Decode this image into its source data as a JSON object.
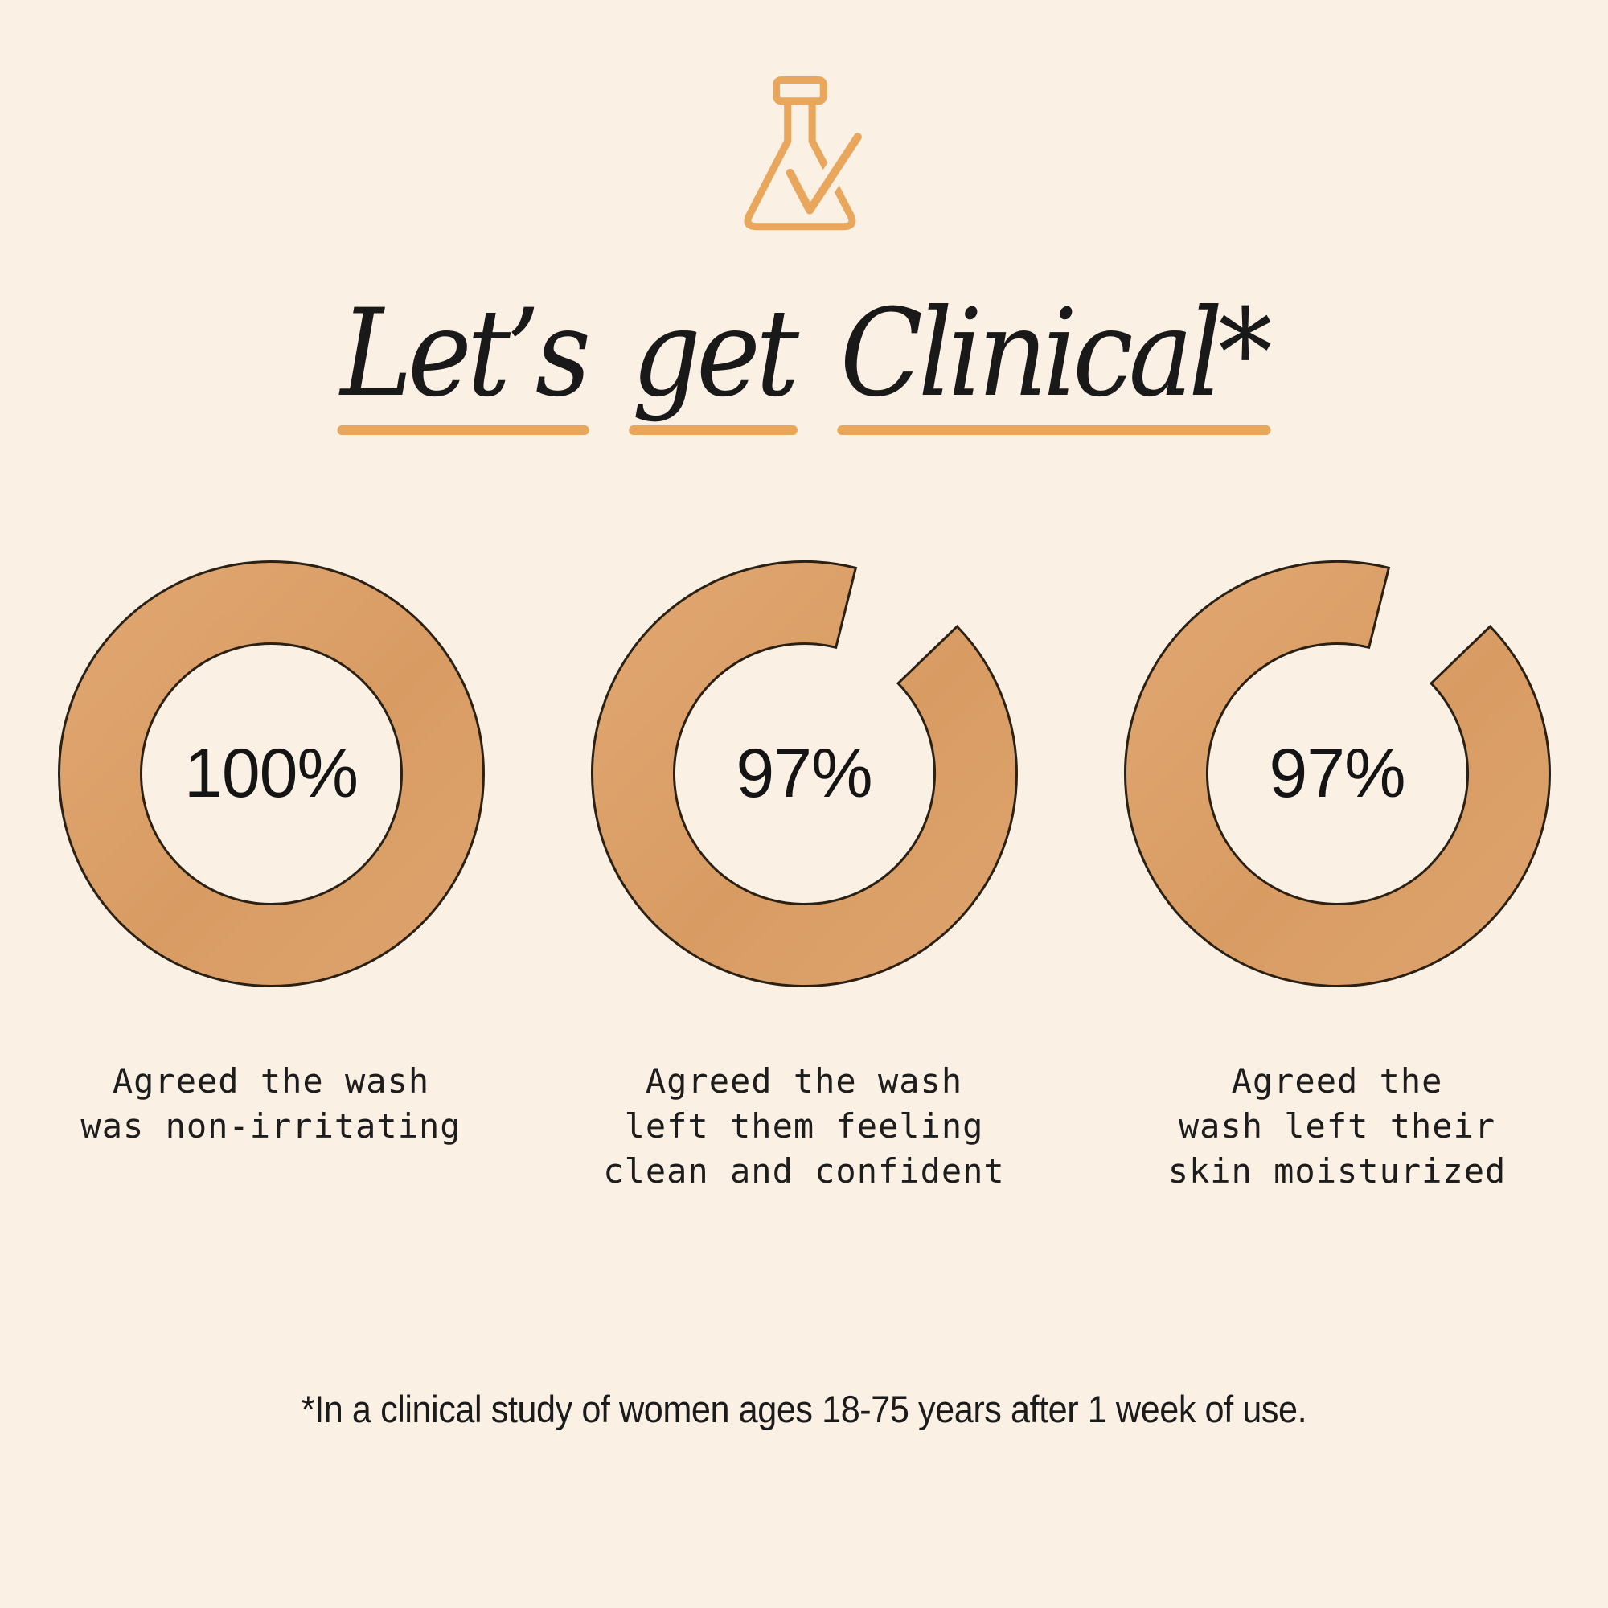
{
  "colors": {
    "bg": "#FAF0E4",
    "ink": "#191919",
    "accent": "#E9A75E",
    "ring_light": "#E2A873",
    "ring_mid": "#D89C63",
    "ring_soft": "#DFA46F",
    "outline": "#2B2014"
  },
  "header": {
    "icon": "flask-check-icon",
    "title_full": "Let’s get Clinical*",
    "title_words": [
      "Let’s",
      "get",
      "Clinical*"
    ]
  },
  "chart_data": [
    {
      "type": "donut",
      "value": 100,
      "label": "100%",
      "caption": "Agreed the wash was non-irritating",
      "caption_lines": [
        "Agreed the wash",
        "was non-irritating"
      ],
      "gap_start_deg": 0,
      "gap_end_deg": 0
    },
    {
      "type": "donut",
      "value": 97,
      "label": "97%",
      "caption": "Agreed the wash left them feeling clean and confident",
      "caption_lines": [
        "Agreed the wash",
        "left them feeling",
        "clean and confident"
      ],
      "gap_start_deg": 14,
      "gap_end_deg": 46
    },
    {
      "type": "donut",
      "value": 97,
      "label": "97%",
      "caption": "Agreed the wash left their skin moisturized",
      "caption_lines": [
        "Agreed the",
        "wash left their",
        "skin moisturized"
      ],
      "gap_start_deg": 14,
      "gap_end_deg": 46
    }
  ],
  "footnote": {
    "text": "*In a clinical study of women ages 18-75 years after 1 week of use."
  }
}
